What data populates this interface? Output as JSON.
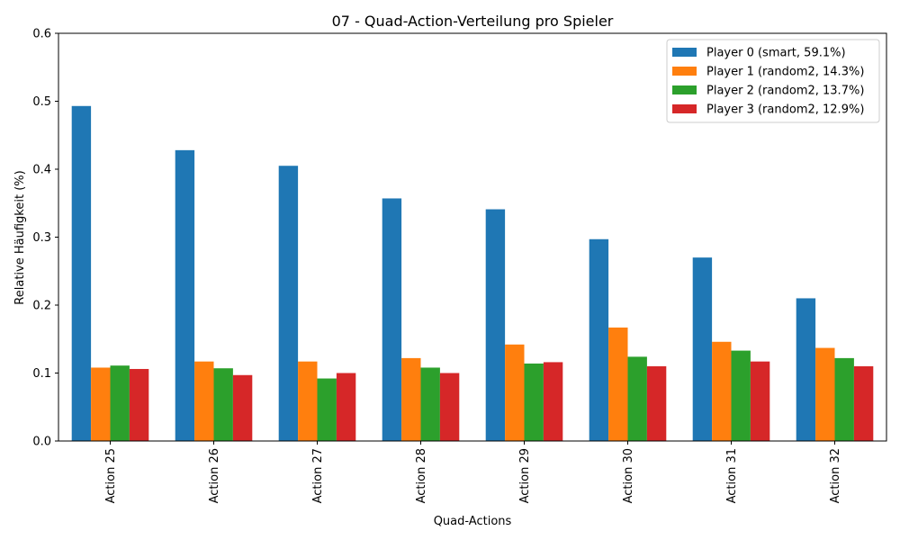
{
  "chart_data": {
    "type": "bar",
    "title": "07 - Quad-Action-Verteilung pro Spieler",
    "xlabel": "Quad-Actions",
    "ylabel": "Relative Häufigkeit (%)",
    "ylim": [
      0,
      0.6
    ],
    "yticks": [
      "0.0",
      "0.1",
      "0.2",
      "0.3",
      "0.4",
      "0.5",
      "0.6"
    ],
    "grid": false,
    "legend_position": "top-right",
    "categories": [
      "Action 25",
      "Action 26",
      "Action 27",
      "Action 28",
      "Action 29",
      "Action 30",
      "Action 31",
      "Action 32"
    ],
    "series": [
      {
        "name": "Player 0 (smart, 59.1%)",
        "color": "#1f77b4",
        "values": [
          0.493,
          0.428,
          0.405,
          0.357,
          0.341,
          0.297,
          0.27,
          0.21
        ]
      },
      {
        "name": "Player 1 (random2, 14.3%)",
        "color": "#ff7f0e",
        "values": [
          0.108,
          0.117,
          0.117,
          0.122,
          0.142,
          0.167,
          0.146,
          0.137
        ]
      },
      {
        "name": "Player 2 (random2, 13.7%)",
        "color": "#2ca02c",
        "values": [
          0.111,
          0.107,
          0.092,
          0.108,
          0.114,
          0.124,
          0.133,
          0.122
        ]
      },
      {
        "name": "Player 3 (random2, 12.9%)",
        "color": "#d62728",
        "values": [
          0.106,
          0.097,
          0.1,
          0.1,
          0.116,
          0.11,
          0.117,
          0.11
        ]
      }
    ]
  }
}
